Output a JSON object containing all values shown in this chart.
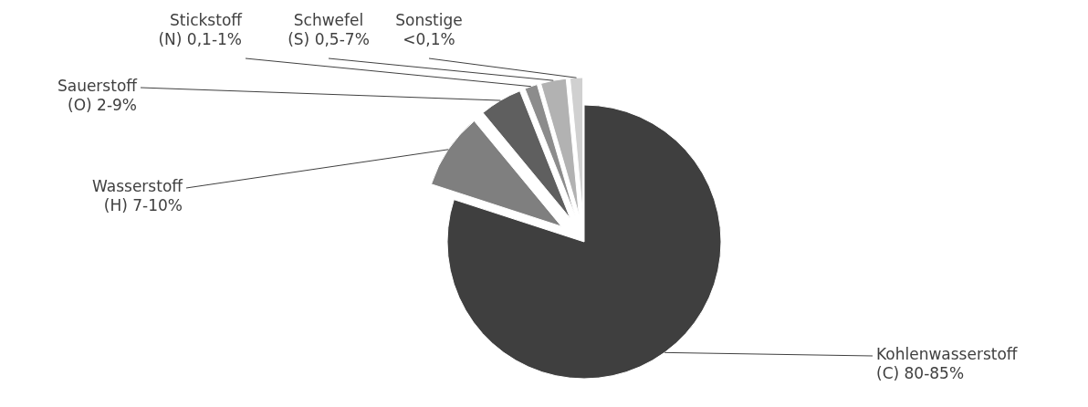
{
  "chart_data": {
    "type": "pie",
    "categories": [
      "Kohlenwasserstoff (C) 80-85%",
      "Wasserstoff (H) 7-10%",
      "Sauerstoff (O) 2-9%",
      "Stickstoff (N) 0,1-1%",
      "Schwefel (S) 0,5-7%",
      "Sonstige <0,1%"
    ],
    "values": [
      80,
      9,
      5,
      1.5,
      3,
      1.5
    ],
    "colors": [
      "#3f3f3f",
      "#7f7f7f",
      "#5f5f5f",
      "#8c8c8c",
      "#b2b2b2",
      "#d0d0d0"
    ]
  }
}
